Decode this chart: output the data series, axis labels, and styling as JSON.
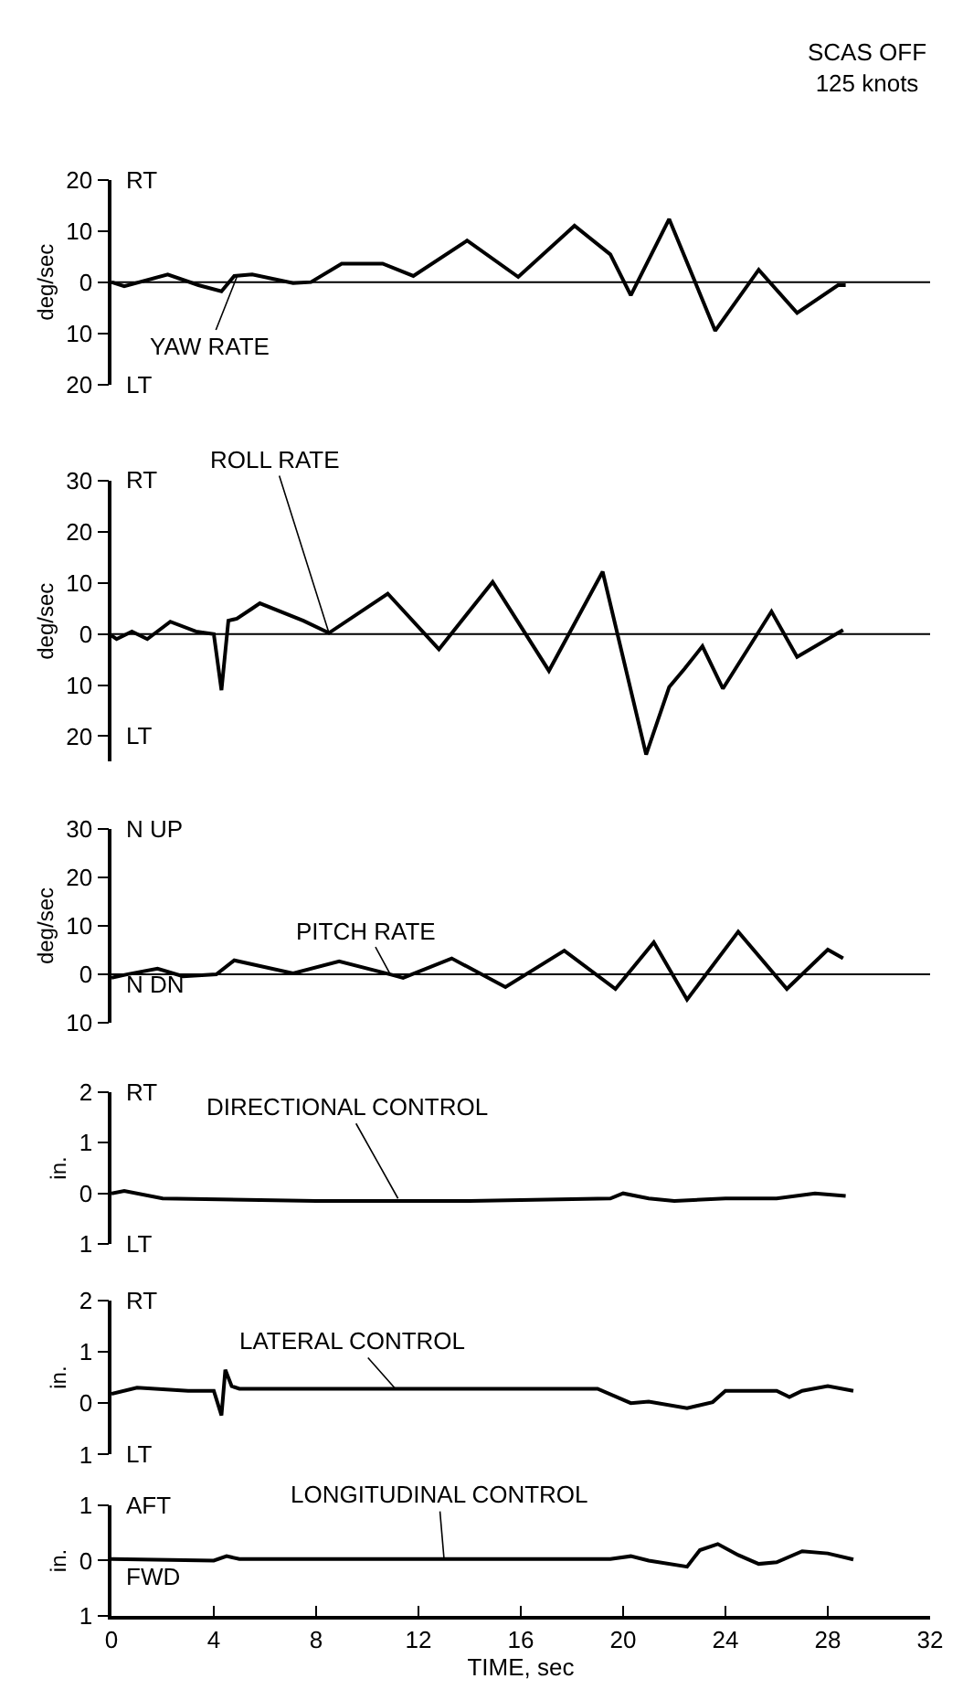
{
  "chart_data": [
    {
      "type": "line",
      "title": "SCAS OFF\n125 knots",
      "ylabel": "deg/sec",
      "xlim": [
        0,
        32
      ],
      "ylim": [
        -20,
        20
      ],
      "yticks": [
        20,
        10,
        0,
        {
          "value": -10,
          "label": "10"
        },
        {
          "value": -20,
          "label": "20"
        }
      ],
      "tick_labels": "y",
      "series": [
        {
          "color": "#000000",
          "x": [
            0,
            0.5,
            2.2,
            3.4,
            4.3,
            4.8,
            5.5,
            7.1,
            7.8,
            9.0,
            10.6,
            11.8,
            13.9,
            15.9,
            18.1,
            19.5,
            20.3,
            21.8,
            23.6,
            25.3,
            26.8,
            28.4,
            28.7
          ],
          "values": [
            0,
            -0.8,
            1.5,
            -0.6,
            -1.8,
            1.2,
            1.5,
            -0.2,
            0,
            3.6,
            3.6,
            1.2,
            8.1,
            1,
            11,
            5.4,
            -2.6,
            12.3,
            -9.5,
            2.4,
            -6,
            -0.6,
            -0.6
          ]
        }
      ],
      "ref_lines": [
        {
          "axis": "y",
          "value": 0
        }
      ],
      "annotations": [
        "RT",
        "LT",
        {
          "text": "YAW RATE",
          "x": 4.9,
          "y": 1
        }
      ]
    },
    {
      "type": "line",
      "ylabel": "deg/sec",
      "xlim": [
        0,
        32
      ],
      "ylim": [
        -25,
        30
      ],
      "yticks": [
        30,
        20,
        10,
        0,
        {
          "value": -10,
          "label": "10"
        },
        {
          "value": -20,
          "label": "20"
        }
      ],
      "tick_labels": "y",
      "series": [
        {
          "color": "#000000",
          "x": [
            0,
            0.2,
            0.8,
            1.4,
            2.3,
            3.3,
            4.0,
            4.3,
            4.57,
            4.9,
            5.5,
            5.8,
            7.5,
            8.5,
            10.8,
            12.8,
            14.9,
            17.1,
            19.2,
            20.9,
            21.8,
            22.4,
            23.1,
            23.9,
            25.8,
            26.8,
            28.6
          ],
          "values": [
            -0.3,
            -1,
            0.5,
            -1,
            2.4,
            0.5,
            0,
            -11,
            2.6,
            3,
            5,
            6,
            2.6,
            0.2,
            7.9,
            -3,
            10.2,
            -7.2,
            12.2,
            -23.6,
            -10.4,
            -6.8,
            -2.4,
            -10.7,
            4.4,
            -4.5,
            0.8
          ]
        }
      ],
      "ref_lines": [
        {
          "axis": "y",
          "value": 0
        }
      ],
      "annotations": [
        "RT",
        "LT",
        {
          "text": "ROLL RATE",
          "x": 8.5,
          "y": 0.2
        }
      ]
    },
    {
      "type": "line",
      "ylabel": "deg/sec",
      "xlim": [
        0,
        32
      ],
      "ylim": [
        -10,
        30
      ],
      "yticks": [
        30,
        20,
        10,
        0,
        {
          "value": -10,
          "label": "10"
        }
      ],
      "tick_labels": "y",
      "series": [
        {
          "color": "#000000",
          "x": [
            0,
            0.6,
            1.8,
            2.8,
            4.1,
            4.8,
            7.1,
            8.9,
            10.9,
            11.4,
            13.3,
            15.4,
            17.7,
            19.7,
            21.2,
            22.5,
            24.5,
            26.4,
            28.0,
            28.6
          ],
          "values": [
            -0.7,
            0,
            1.2,
            -0.4,
            0,
            2.9,
            0.2,
            2.7,
            0,
            -0.7,
            3.3,
            -2.6,
            4.9,
            -3,
            6.6,
            -5.2,
            8.8,
            -3,
            5.1,
            3.3
          ]
        }
      ],
      "ref_lines": [
        {
          "axis": "y",
          "value": 0
        }
      ],
      "annotations": [
        "N UP",
        "N DN",
        {
          "text": "PITCH RATE",
          "x": 10.9,
          "y": 0
        }
      ]
    },
    {
      "type": "line",
      "ylabel": "in.",
      "xlim": [
        0,
        32
      ],
      "ylim": [
        -1,
        2
      ],
      "yticks": [
        2,
        1,
        0,
        {
          "value": -1,
          "label": "1"
        }
      ],
      "tick_labels": "y",
      "series": [
        {
          "color": "#000000",
          "x": [
            0,
            0.5,
            2,
            8,
            14,
            19.5,
            20,
            21,
            22,
            24,
            26,
            27.5,
            28.7
          ],
          "values": [
            0,
            0.05,
            -0.1,
            -0.15,
            -0.15,
            -0.1,
            0,
            -0.1,
            -0.15,
            -0.1,
            -0.1,
            0,
            -0.05
          ]
        }
      ],
      "annotations": [
        "RT",
        "LT",
        {
          "text": "DIRECTIONAL CONTROL",
          "x": 11.2,
          "y": -0.1
        }
      ]
    },
    {
      "type": "line",
      "ylabel": "in.",
      "xlim": [
        0,
        32
      ],
      "ylim": [
        -1,
        2
      ],
      "yticks": [
        2,
        1,
        0,
        {
          "value": -1,
          "label": "1"
        }
      ],
      "tick_labels": "y",
      "series": [
        {
          "color": "#000000",
          "x": [
            0,
            1,
            3,
            4,
            4.3,
            4.45,
            4.7,
            5,
            19,
            20.3,
            21,
            22.5,
            23.5,
            24,
            26,
            26.5,
            27,
            28,
            29
          ],
          "values": [
            0.18,
            0.3,
            0.24,
            0.24,
            -0.24,
            0.65,
            0.33,
            0.28,
            0.28,
            0,
            0.03,
            -0.1,
            0.02,
            0.24,
            0.24,
            0.12,
            0.24,
            0.33,
            0.24
          ]
        }
      ],
      "annotations": [
        "RT",
        "LT",
        {
          "text": "LATERAL CONTROL",
          "x": 11.1,
          "y": 0.28
        }
      ]
    },
    {
      "type": "line",
      "ylabel": "in.",
      "xlabel": "TIME, sec",
      "xlim": [
        0,
        32
      ],
      "xticks": [
        0,
        4,
        8,
        12,
        16,
        20,
        24,
        28,
        32
      ],
      "ylim": [
        -1,
        1
      ],
      "yticks": [
        1,
        0,
        {
          "value": -1,
          "label": "1"
        }
      ],
      "series": [
        {
          "color": "#000000",
          "x": [
            0,
            4,
            4.5,
            5,
            19.5,
            20.3,
            21,
            22.5,
            23,
            23.7,
            24.5,
            25.3,
            26,
            27,
            28,
            29
          ],
          "values": [
            0.03,
            0,
            0.08,
            0.03,
            0.03,
            0.08,
            0,
            -0.11,
            0.19,
            0.3,
            0.1,
            -0.06,
            -0.03,
            0.17,
            0.13,
            0.02
          ]
        }
      ],
      "annotations": [
        "AFT",
        "FWD",
        {
          "text": "LONGITUDINAL CONTROL",
          "x": 13.0,
          "y": 0.03
        }
      ]
    }
  ]
}
